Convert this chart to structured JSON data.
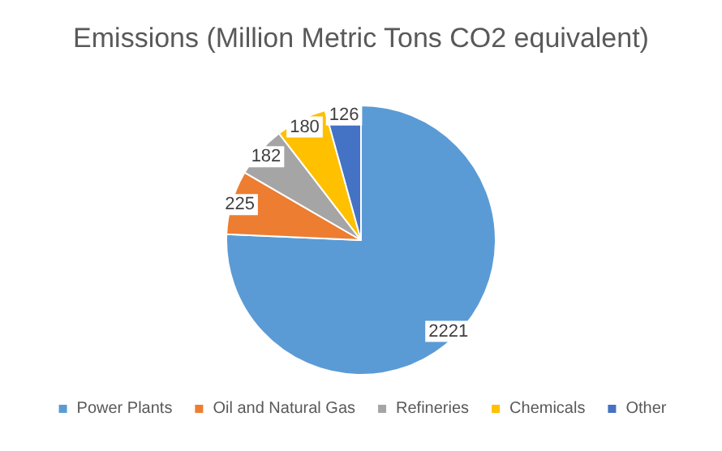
{
  "chart_data": {
    "type": "pie",
    "title": "Emissions (Million Metric Tons CO2 equivalent)",
    "categories": [
      "Power Plants",
      "Oil and Natural Gas",
      "Refineries",
      "Chemicals",
      "Other"
    ],
    "values": [
      2221,
      225,
      182,
      180,
      126
    ],
    "colors": [
      "#5b9bd5",
      "#ed7d31",
      "#a5a5a5",
      "#ffc000",
      "#4472c4"
    ],
    "data_labels": true,
    "legend": "bottom"
  }
}
